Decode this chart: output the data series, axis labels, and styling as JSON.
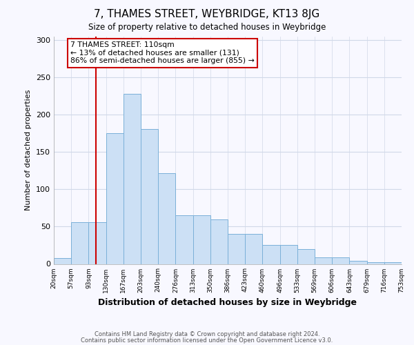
{
  "title": "7, THAMES STREET, WEYBRIDGE, KT13 8JG",
  "subtitle": "Size of property relative to detached houses in Weybridge",
  "xlabel": "Distribution of detached houses by size in Weybridge",
  "ylabel": "Number of detached properties",
  "bar_values": [
    8,
    56,
    56,
    175,
    228,
    181,
    122,
    65,
    65,
    60,
    40,
    40,
    25,
    25,
    20,
    9,
    9,
    4,
    2,
    2
  ],
  "bin_edges": [
    20,
    57,
    94,
    131,
    168,
    205,
    242,
    279,
    316,
    353,
    390,
    427,
    464,
    501,
    538,
    575,
    612,
    649,
    686,
    723,
    760
  ],
  "tick_labels": [
    "20sqm",
    "57sqm",
    "93sqm",
    "130sqm",
    "167sqm",
    "203sqm",
    "240sqm",
    "276sqm",
    "313sqm",
    "350sqm",
    "386sqm",
    "423sqm",
    "460sqm",
    "496sqm",
    "533sqm",
    "569sqm",
    "606sqm",
    "643sqm",
    "679sqm",
    "716sqm",
    "753sqm"
  ],
  "bar_facecolor": "#cce0f5",
  "bar_edgecolor": "#7ab0d8",
  "vline_x": 110,
  "vline_color": "#cc0000",
  "annotation_text": "7 THAMES STREET: 110sqm\n← 13% of detached houses are smaller (131)\n86% of semi-detached houses are larger (855) →",
  "annotation_box_edgecolor": "#cc0000",
  "annotation_box_facecolor": "#ffffff",
  "plot_bg_color": "#f8f8ff",
  "fig_bg_color": "#f8f8ff",
  "grid_color": "#d0d8e8",
  "ylim": [
    0,
    305
  ],
  "yticks": [
    0,
    50,
    100,
    150,
    200,
    250,
    300
  ],
  "footer1": "Contains HM Land Registry data © Crown copyright and database right 2024.",
  "footer2": "Contains public sector information licensed under the Open Government Licence v3.0."
}
